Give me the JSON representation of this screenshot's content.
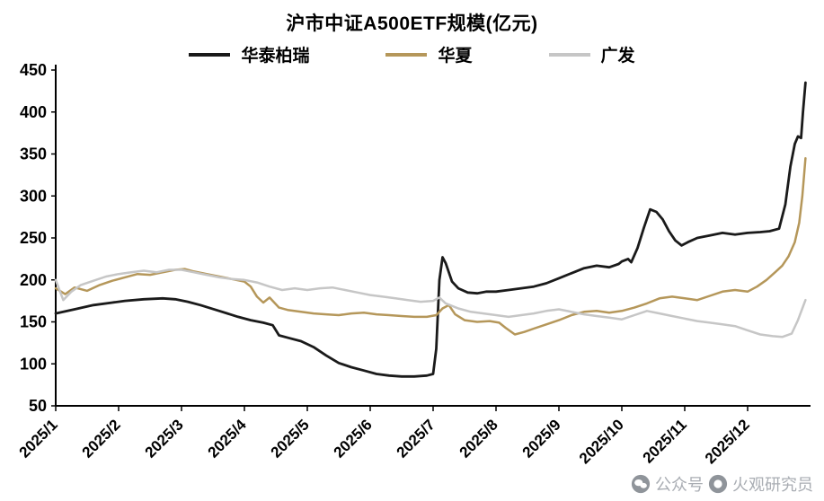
{
  "title": "沪市中证A500ETF规模(亿元)",
  "watermark": {
    "prefix": "公众号",
    "name": "火观研究员"
  },
  "chart_data": {
    "type": "line",
    "title": "沪市中证A500ETF规模(亿元)",
    "ylabel": "",
    "xlabel": "",
    "ylim": [
      50,
      450
    ],
    "ytick_step": 50,
    "x_domain": [
      0,
      12
    ],
    "grid": false,
    "legend_position": "top",
    "x_ticks": [
      "2025/1",
      "2025/2",
      "2025/3",
      "2025/4",
      "2025/5",
      "2025/6",
      "2025/7",
      "2025/8",
      "2025/9",
      "2025/10",
      "2025/11",
      "2025/12"
    ],
    "series": [
      {
        "name": "华泰柏瑞",
        "color": "#1a1a1a",
        "width": 2.8,
        "points": [
          [
            0,
            160
          ],
          [
            0.3,
            165
          ],
          [
            0.6,
            170
          ],
          [
            0.9,
            173
          ],
          [
            1.1,
            175
          ],
          [
            1.4,
            177
          ],
          [
            1.7,
            178
          ],
          [
            1.9,
            177
          ],
          [
            2.1,
            174
          ],
          [
            2.3,
            170
          ],
          [
            2.6,
            163
          ],
          [
            2.9,
            156
          ],
          [
            3.1,
            152
          ],
          [
            3.3,
            149
          ],
          [
            3.45,
            146
          ],
          [
            3.55,
            134
          ],
          [
            3.7,
            131
          ],
          [
            3.9,
            127
          ],
          [
            4.1,
            120
          ],
          [
            4.3,
            110
          ],
          [
            4.5,
            101
          ],
          [
            4.7,
            96
          ],
          [
            4.9,
            92
          ],
          [
            5.1,
            88
          ],
          [
            5.3,
            86
          ],
          [
            5.5,
            85
          ],
          [
            5.7,
            85
          ],
          [
            5.9,
            86
          ],
          [
            6.0,
            88
          ],
          [
            6.05,
            118
          ],
          [
            6.1,
            200
          ],
          [
            6.15,
            227
          ],
          [
            6.2,
            220
          ],
          [
            6.3,
            198
          ],
          [
            6.4,
            190
          ],
          [
            6.55,
            185
          ],
          [
            6.7,
            184
          ],
          [
            6.85,
            186
          ],
          [
            7.0,
            186
          ],
          [
            7.2,
            188
          ],
          [
            7.4,
            190
          ],
          [
            7.6,
            192
          ],
          [
            7.8,
            196
          ],
          [
            8.0,
            202
          ],
          [
            8.2,
            208
          ],
          [
            8.4,
            214
          ],
          [
            8.6,
            217
          ],
          [
            8.8,
            215
          ],
          [
            8.95,
            219
          ],
          [
            9.0,
            222
          ],
          [
            9.1,
            225
          ],
          [
            9.15,
            221
          ],
          [
            9.25,
            238
          ],
          [
            9.35,
            262
          ],
          [
            9.45,
            284
          ],
          [
            9.55,
            281
          ],
          [
            9.65,
            272
          ],
          [
            9.75,
            258
          ],
          [
            9.85,
            247
          ],
          [
            9.95,
            241
          ],
          [
            10.05,
            245
          ],
          [
            10.2,
            250
          ],
          [
            10.4,
            253
          ],
          [
            10.6,
            256
          ],
          [
            10.8,
            254
          ],
          [
            11.0,
            256
          ],
          [
            11.2,
            257
          ],
          [
            11.35,
            258
          ],
          [
            11.5,
            261
          ],
          [
            11.6,
            290
          ],
          [
            11.68,
            335
          ],
          [
            11.75,
            362
          ],
          [
            11.8,
            371
          ],
          [
            11.85,
            369
          ],
          [
            11.88,
            400
          ],
          [
            11.92,
            435
          ]
        ]
      },
      {
        "name": "华夏",
        "color": "#b5975a",
        "width": 2.5,
        "points": [
          [
            0,
            190
          ],
          [
            0.15,
            183
          ],
          [
            0.3,
            191
          ],
          [
            0.5,
            187
          ],
          [
            0.7,
            194
          ],
          [
            0.9,
            199
          ],
          [
            1.1,
            203
          ],
          [
            1.3,
            207
          ],
          [
            1.5,
            206
          ],
          [
            1.7,
            209
          ],
          [
            1.9,
            212
          ],
          [
            2.05,
            213
          ],
          [
            2.2,
            210
          ],
          [
            2.4,
            207
          ],
          [
            2.6,
            204
          ],
          [
            2.8,
            201
          ],
          [
            3.0,
            198
          ],
          [
            3.1,
            192
          ],
          [
            3.2,
            180
          ],
          [
            3.3,
            173
          ],
          [
            3.4,
            179
          ],
          [
            3.55,
            167
          ],
          [
            3.7,
            164
          ],
          [
            3.9,
            162
          ],
          [
            4.1,
            160
          ],
          [
            4.3,
            159
          ],
          [
            4.5,
            158
          ],
          [
            4.7,
            160
          ],
          [
            4.9,
            161
          ],
          [
            5.1,
            159
          ],
          [
            5.3,
            158
          ],
          [
            5.5,
            157
          ],
          [
            5.7,
            156
          ],
          [
            5.9,
            156
          ],
          [
            6.05,
            158
          ],
          [
            6.15,
            166
          ],
          [
            6.25,
            170
          ],
          [
            6.35,
            159
          ],
          [
            6.5,
            152
          ],
          [
            6.7,
            150
          ],
          [
            6.9,
            151
          ],
          [
            7.05,
            149
          ],
          [
            7.15,
            143
          ],
          [
            7.3,
            135
          ],
          [
            7.45,
            138
          ],
          [
            7.6,
            142
          ],
          [
            7.8,
            147
          ],
          [
            8.0,
            152
          ],
          [
            8.2,
            158
          ],
          [
            8.4,
            162
          ],
          [
            8.6,
            163
          ],
          [
            8.8,
            161
          ],
          [
            9.0,
            163
          ],
          [
            9.2,
            167
          ],
          [
            9.4,
            172
          ],
          [
            9.6,
            178
          ],
          [
            9.8,
            180
          ],
          [
            10.0,
            178
          ],
          [
            10.2,
            176
          ],
          [
            10.4,
            181
          ],
          [
            10.6,
            186
          ],
          [
            10.8,
            188
          ],
          [
            11.0,
            186
          ],
          [
            11.15,
            192
          ],
          [
            11.3,
            200
          ],
          [
            11.45,
            210
          ],
          [
            11.55,
            217
          ],
          [
            11.65,
            228
          ],
          [
            11.75,
            245
          ],
          [
            11.82,
            268
          ],
          [
            11.87,
            300
          ],
          [
            11.92,
            345
          ]
        ]
      },
      {
        "name": "广发",
        "color": "#c6c6c6",
        "width": 2.5,
        "points": [
          [
            0,
            200
          ],
          [
            0.12,
            176
          ],
          [
            0.25,
            186
          ],
          [
            0.4,
            194
          ],
          [
            0.6,
            199
          ],
          [
            0.8,
            204
          ],
          [
            1.0,
            207
          ],
          [
            1.2,
            209
          ],
          [
            1.4,
            211
          ],
          [
            1.6,
            209
          ],
          [
            1.8,
            212
          ],
          [
            2.0,
            212
          ],
          [
            2.2,
            209
          ],
          [
            2.4,
            206
          ],
          [
            2.6,
            203
          ],
          [
            2.8,
            201
          ],
          [
            3.0,
            200
          ],
          [
            3.2,
            197
          ],
          [
            3.4,
            192
          ],
          [
            3.6,
            188
          ],
          [
            3.8,
            190
          ],
          [
            4.0,
            188
          ],
          [
            4.2,
            190
          ],
          [
            4.4,
            191
          ],
          [
            4.6,
            188
          ],
          [
            4.8,
            185
          ],
          [
            5.0,
            182
          ],
          [
            5.2,
            180
          ],
          [
            5.4,
            178
          ],
          [
            5.6,
            176
          ],
          [
            5.8,
            174
          ],
          [
            6.0,
            175
          ],
          [
            6.1,
            179
          ],
          [
            6.2,
            172
          ],
          [
            6.4,
            166
          ],
          [
            6.6,
            162
          ],
          [
            6.8,
            160
          ],
          [
            7.0,
            158
          ],
          [
            7.2,
            156
          ],
          [
            7.4,
            158
          ],
          [
            7.6,
            160
          ],
          [
            7.8,
            163
          ],
          [
            8.0,
            165
          ],
          [
            8.2,
            162
          ],
          [
            8.4,
            159
          ],
          [
            8.6,
            157
          ],
          [
            8.8,
            155
          ],
          [
            9.0,
            153
          ],
          [
            9.2,
            158
          ],
          [
            9.4,
            163
          ],
          [
            9.6,
            160
          ],
          [
            9.8,
            157
          ],
          [
            10.0,
            154
          ],
          [
            10.2,
            151
          ],
          [
            10.4,
            149
          ],
          [
            10.6,
            147
          ],
          [
            10.8,
            145
          ],
          [
            11.0,
            140
          ],
          [
            11.2,
            135
          ],
          [
            11.4,
            133
          ],
          [
            11.55,
            132
          ],
          [
            11.7,
            136
          ],
          [
            11.8,
            152
          ],
          [
            11.87,
            166
          ],
          [
            11.92,
            176
          ]
        ]
      }
    ]
  }
}
